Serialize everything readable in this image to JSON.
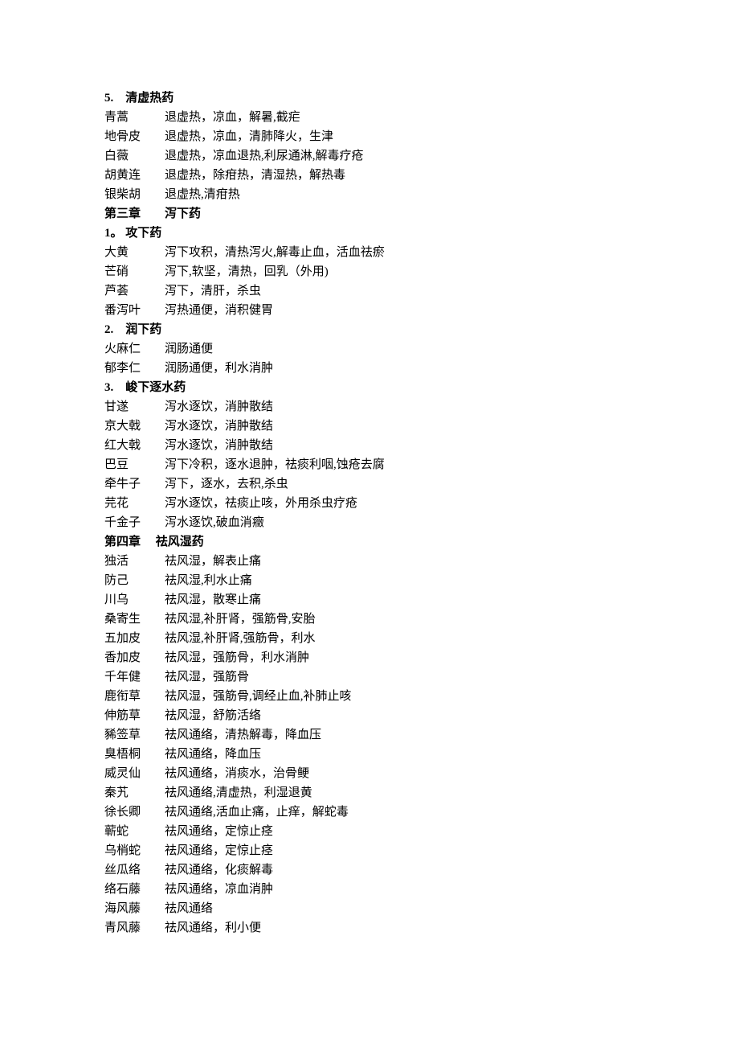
{
  "section5": {
    "heading": "5.　清虚热药",
    "entries": [
      {
        "name": "青蒿",
        "effects": "退虚热，凉血，解暑,截疟"
      },
      {
        "name": "地骨皮",
        "effects": "退虚热，凉血，清肺降火，生津"
      },
      {
        "name": "白薇",
        "effects": "退虚热，凉血退热,利尿通淋,解毒疗疮"
      },
      {
        "name": "胡黄连",
        "effects": "退虚热，除疳热，清湿热，解热毒"
      },
      {
        "name": "银柴胡",
        "effects": "退虚热,清疳热"
      }
    ]
  },
  "chapter3": {
    "heading": "第三章　　泻下药",
    "section1": {
      "heading": "1。 攻下药",
      "entries": [
        {
          "name": "大黄",
          "effects": "泻下攻积，清热泻火,解毒止血，活血祛瘀"
        },
        {
          "name": "芒硝",
          "effects": "泻下,软坚，清热，回乳（外用)"
        },
        {
          "name": "芦荟",
          "effects": "泻下，清肝，杀虫"
        },
        {
          "name": "番泻叶",
          "effects": "泻热通便，消积健胃"
        }
      ]
    },
    "section2": {
      "heading": "2.　润下药",
      "entries": [
        {
          "name": "火麻仁",
          "effects": "润肠通便"
        },
        {
          "name": "郁李仁",
          "effects": "润肠通便，利水消肿"
        }
      ]
    },
    "section3": {
      "heading": "3.　峻下逐水药",
      "entries": [
        {
          "name": "甘遂",
          "effects": "泻水逐饮，消肿散结"
        },
        {
          "name": "京大戟",
          "effects": "泻水逐饮，消肿散结"
        },
        {
          "name": "红大戟",
          "effects": "泻水逐饮，消肿散结"
        },
        {
          "name": "巴豆",
          "effects": "泻下冷积，逐水退肿，祛痰利咽,蚀疮去腐"
        },
        {
          "name": "牵牛子",
          "effects": "泻下，逐水，去积,杀虫"
        },
        {
          "name": "芫花",
          "effects": "泻水逐饮，祛痰止咳，外用杀虫疗疮"
        },
        {
          "name": "千金子",
          "effects": "泻水逐饮,破血消癥"
        }
      ]
    }
  },
  "chapter4": {
    "heading": "第四章　 祛风湿药",
    "entries": [
      {
        "name": "独活",
        "effects": "祛风湿，解表止痛"
      },
      {
        "name": "防己",
        "effects": "祛风湿,利水止痛"
      },
      {
        "name": "川乌",
        "effects": "祛风湿，散寒止痛"
      },
      {
        "name": "桑寄生",
        "effects": "祛风湿,补肝肾，强筋骨,安胎"
      },
      {
        "name": "五加皮",
        "effects": "祛风湿,补肝肾,强筋骨，利水"
      },
      {
        "name": "香加皮",
        "effects": "祛风湿，强筋骨，利水消肿"
      },
      {
        "name": "千年健",
        "effects": "祛风湿，强筋骨"
      },
      {
        "name": "鹿衔草",
        "effects": "祛风湿，强筋骨,调经止血,补肺止咳"
      },
      {
        "name": "伸筋草",
        "effects": "祛风湿，舒筋活络"
      },
      {
        "name": "豨签草",
        "effects": "祛风通络，清热解毒，降血压"
      },
      {
        "name": "臭梧桐",
        "effects": "祛风通络，降血压"
      },
      {
        "name": "威灵仙",
        "effects": "祛风通络，消痰水，治骨鲠"
      },
      {
        "name": "秦艽",
        "effects": "祛风通络,清虚热，利湿退黄"
      },
      {
        "name": "徐长卿",
        "effects": "祛风通络,活血止痛，止痒，解蛇毒"
      },
      {
        "name": "蕲蛇",
        "effects": "祛风通络，定惊止痉"
      },
      {
        "name": "乌梢蛇",
        "effects": "祛风通络，定惊止痉"
      },
      {
        "name": "丝瓜络",
        "effects": "祛风通络，化痰解毒"
      },
      {
        "name": "络石藤",
        "effects": "祛风通络，凉血消肿"
      },
      {
        "name": "海风藤",
        "effects": "祛风通络"
      },
      {
        "name": "青风藤",
        "effects": "祛风通络，利小便"
      }
    ]
  }
}
